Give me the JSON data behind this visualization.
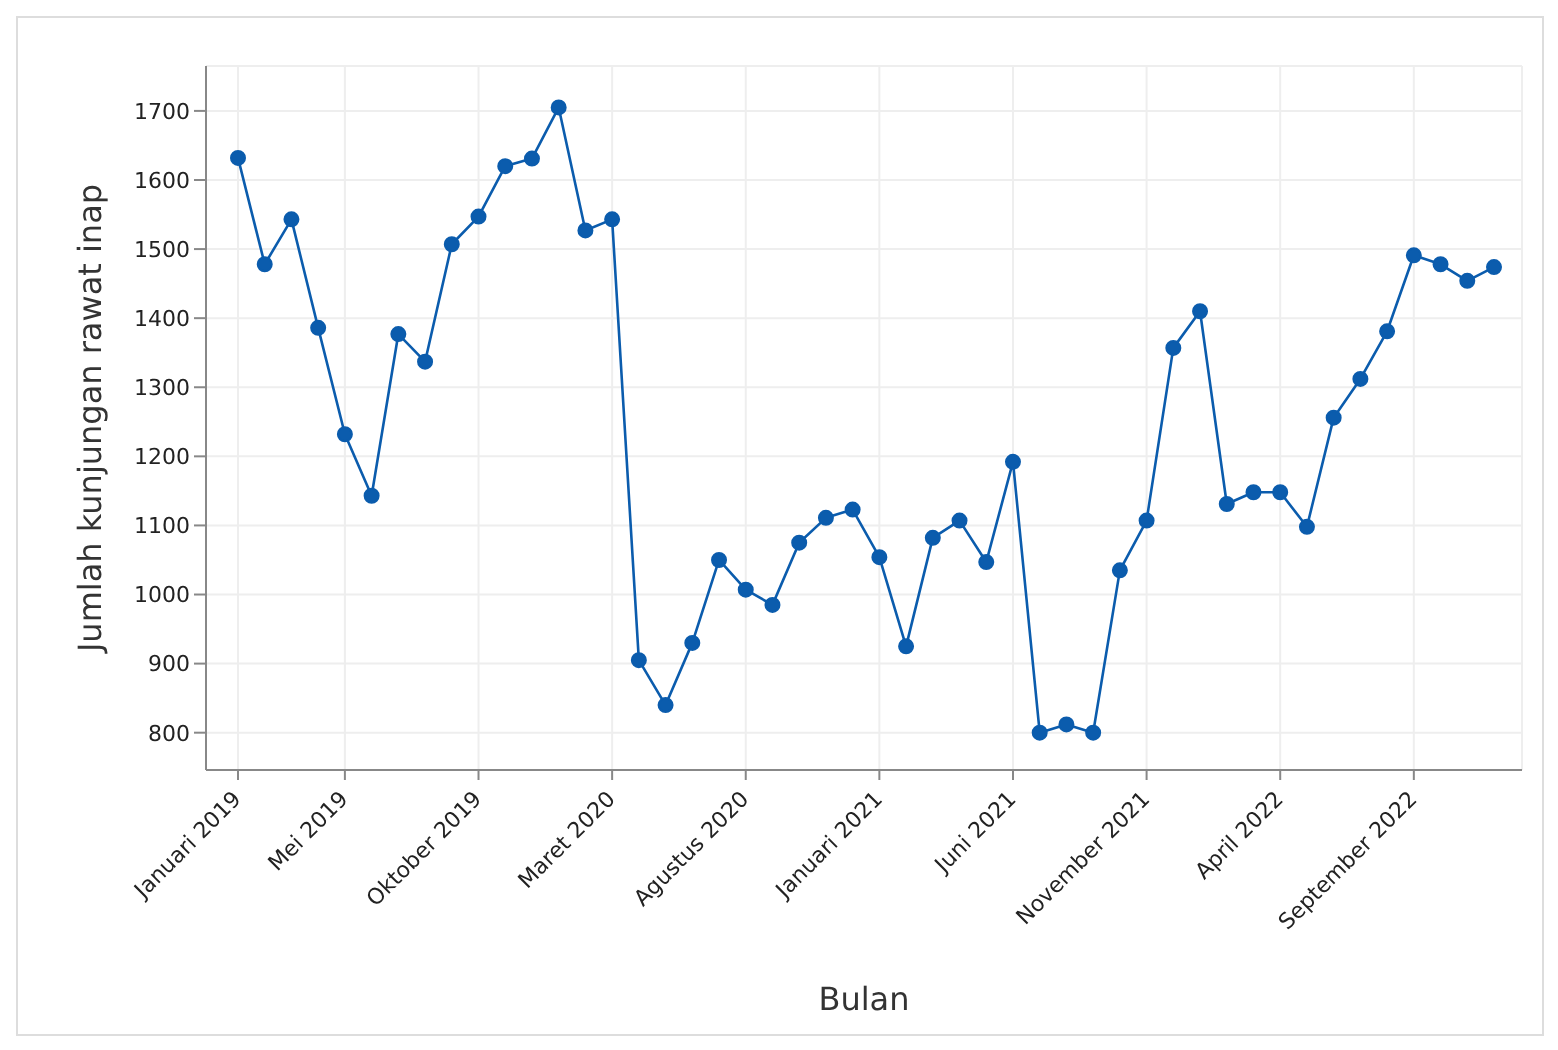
{
  "chart_data": {
    "type": "line",
    "xlabel": "Bulan",
    "ylabel": "Jumlah kunjungan rawat inap",
    "categories": [
      "Januari 2019",
      null,
      null,
      null,
      "Mei 2019",
      null,
      null,
      null,
      null,
      "Oktober 2019",
      null,
      null,
      null,
      null,
      "Maret 2020",
      null,
      null,
      null,
      null,
      "Agustus 2020",
      null,
      null,
      null,
      null,
      "Januari 2021",
      null,
      null,
      null,
      null,
      "Juni 2021",
      null,
      null,
      null,
      null,
      "November 2021",
      null,
      null,
      null,
      null,
      "April 2022",
      null,
      null,
      null,
      null,
      "September 2022",
      null,
      null,
      null
    ],
    "series": [
      {
        "color": "#0b5cad",
        "values": [
          1632,
          1478,
          1543,
          1386,
          1232,
          1143,
          1377,
          1337,
          1507,
          1547,
          1620,
          1631,
          1705,
          1527,
          1543,
          905,
          840,
          930,
          1050,
          1007,
          985,
          1075,
          1111,
          1123,
          1054,
          925,
          1082,
          1107,
          1047,
          1192,
          800,
          812,
          800,
          1035,
          1107,
          1357,
          1410,
          1131,
          1148,
          1148,
          1098,
          1256,
          1312,
          1381,
          1491,
          1478,
          1454,
          1474
        ]
      }
    ],
    "ylim": [
      746,
      1765
    ],
    "yticks": [
      800,
      900,
      1000,
      1100,
      1200,
      1300,
      1400,
      1500,
      1600,
      1700
    ],
    "grid": true,
    "marker": "circle",
    "line_style": "solid",
    "legend": false
  }
}
